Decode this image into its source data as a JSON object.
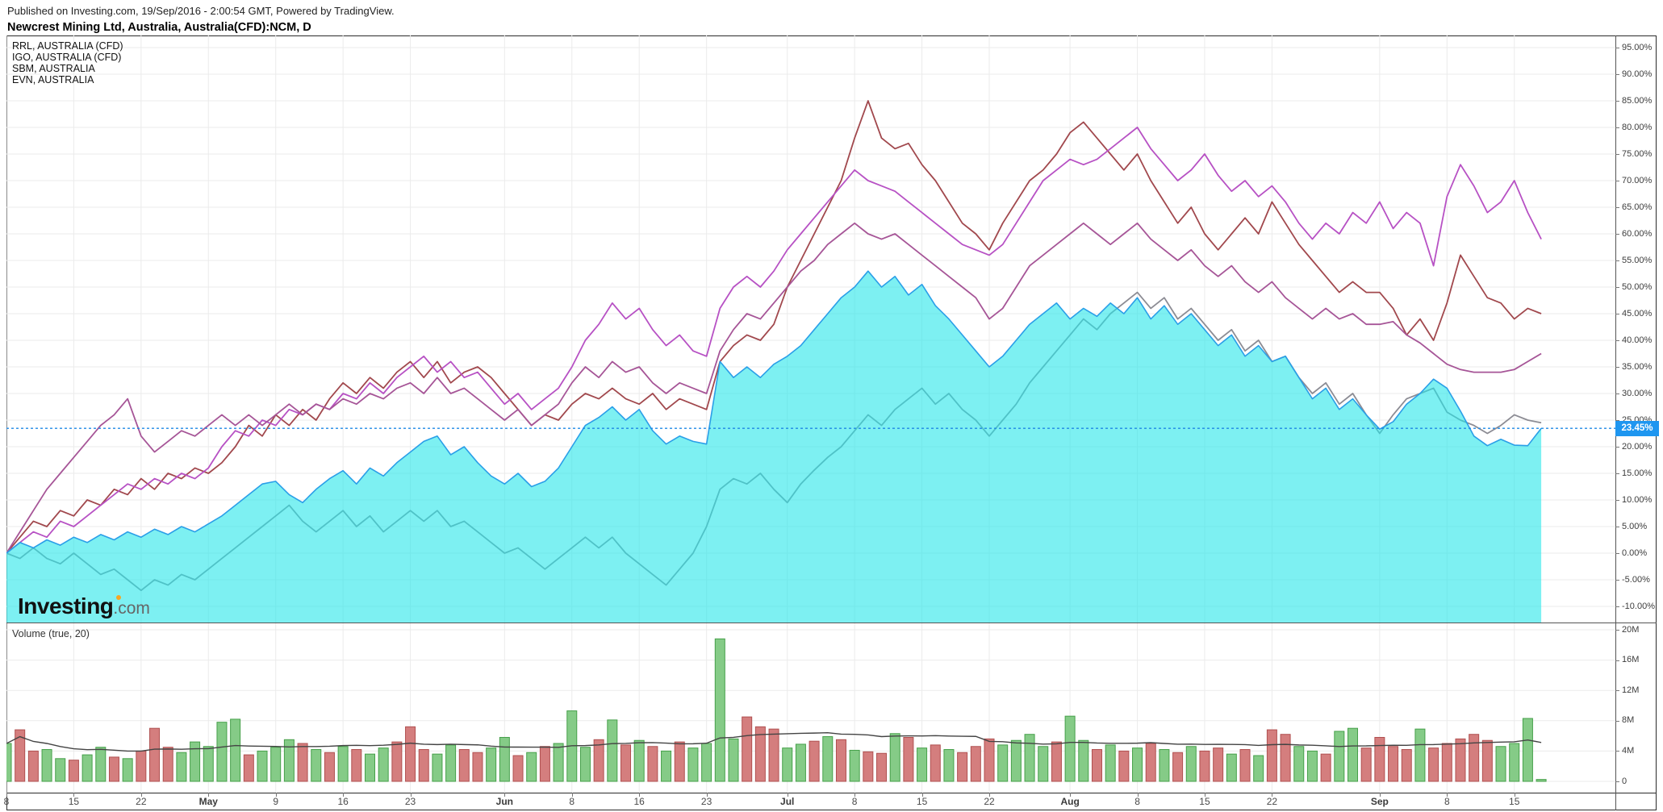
{
  "header": {
    "published": "Published on Investing.com, 19/Sep/2016 - 2:00:54 GMT, Powered by TradingView.",
    "title": "Newcrest Mining Ltd, Australia, Australia(CFD):NCM, D"
  },
  "legend": {
    "items": [
      "RRL, AUSTRALIA (CFD)",
      "IGO, AUSTRALIA (CFD)",
      "SBM, AUSTRALIA",
      "EVN, AUSTRALIA"
    ]
  },
  "watermark": {
    "brand": "Investing",
    "suffix": ".com"
  },
  "volume_pane": {
    "label": "Volume (true, 20)"
  },
  "current_value_badge": "23.45%",
  "colors": {
    "area_fill": "rgba(38,230,233,0.6)",
    "area_line": "#2a9fe8",
    "dotted_line": "#1e88e5",
    "badge_bg": "#1e96f0",
    "rrl": "#a1484d",
    "igo": "#b751c4",
    "sbm": "#a65597",
    "evn": "#8c8c94",
    "vol_green_fill": "#85cb87",
    "vol_green_border": "#46a04a",
    "vol_red_fill": "#d47e7e",
    "vol_red_border": "#b05050",
    "vol_ma_line": "#444444",
    "grid": "#ebebeb"
  },
  "price_axis": {
    "ticks": [
      {
        "v": 95,
        "label": "95.00%"
      },
      {
        "v": 90,
        "label": "90.00%"
      },
      {
        "v": 85,
        "label": "85.00%"
      },
      {
        "v": 80,
        "label": "80.00%"
      },
      {
        "v": 75,
        "label": "75.00%"
      },
      {
        "v": 70,
        "label": "70.00%"
      },
      {
        "v": 65,
        "label": "65.00%"
      },
      {
        "v": 60,
        "label": "60.00%"
      },
      {
        "v": 55,
        "label": "55.00%"
      },
      {
        "v": 50,
        "label": "50.00%"
      },
      {
        "v": 45,
        "label": "45.00%"
      },
      {
        "v": 40,
        "label": "40.00%"
      },
      {
        "v": 35,
        "label": "35.00%"
      },
      {
        "v": 30,
        "label": "30.00%"
      },
      {
        "v": 25,
        "label": "25.00%"
      },
      {
        "v": 20,
        "label": "20.00%"
      },
      {
        "v": 15,
        "label": "15.00%"
      },
      {
        "v": 10,
        "label": "10.00%"
      },
      {
        "v": 5,
        "label": "5.00%"
      },
      {
        "v": 0,
        "label": "0.00%"
      },
      {
        "v": -5,
        "label": "-5.00%"
      },
      {
        "v": -10,
        "label": "-10.00%"
      }
    ]
  },
  "volume_axis": {
    "ticks": [
      {
        "v": 20,
        "label": "20M"
      },
      {
        "v": 16,
        "label": "16M"
      },
      {
        "v": 12,
        "label": "12M"
      },
      {
        "v": 8,
        "label": "8M"
      },
      {
        "v": 4,
        "label": "4M"
      },
      {
        "v": 0,
        "label": "0"
      }
    ]
  },
  "x_axis": {
    "ticks": [
      {
        "td": 0,
        "label": "8",
        "month": false
      },
      {
        "td": 5,
        "label": "15",
        "month": false
      },
      {
        "td": 10,
        "label": "22",
        "month": false
      },
      {
        "td": 15,
        "label": "May",
        "month": true
      },
      {
        "td": 20,
        "label": "9",
        "month": false
      },
      {
        "td": 25,
        "label": "16",
        "month": false
      },
      {
        "td": 30,
        "label": "23",
        "month": false
      },
      {
        "td": 37,
        "label": "Jun",
        "month": true
      },
      {
        "td": 42,
        "label": "8",
        "month": false
      },
      {
        "td": 47,
        "label": "16",
        "month": false
      },
      {
        "td": 52,
        "label": "23",
        "month": false
      },
      {
        "td": 58,
        "label": "Jul",
        "month": true
      },
      {
        "td": 63,
        "label": "8",
        "month": false
      },
      {
        "td": 68,
        "label": "15",
        "month": false
      },
      {
        "td": 73,
        "label": "22",
        "month": false
      },
      {
        "td": 79,
        "label": "Aug",
        "month": true
      },
      {
        "td": 84,
        "label": "8",
        "month": false
      },
      {
        "td": 89,
        "label": "15",
        "month": false
      },
      {
        "td": 94,
        "label": "22",
        "month": false
      },
      {
        "td": 102,
        "label": "Sep",
        "month": true
      },
      {
        "td": 107,
        "label": "8",
        "month": false
      },
      {
        "td": 112,
        "label": "15",
        "month": false
      }
    ]
  },
  "chart_data": [
    {
      "type": "area",
      "name": "NCM, Australia(CFD) percent change",
      "x_unit": "trading-day index from 8/Apr/2016",
      "y_unit": "percent",
      "ylim": [
        -10,
        95
      ],
      "final_value": 23.45,
      "values": [
        0,
        2,
        1,
        2.5,
        1.5,
        3,
        2,
        3.5,
        2.5,
        4,
        3,
        4.5,
        3.5,
        5,
        4,
        5.5,
        7,
        9,
        11,
        13,
        13.5,
        11,
        9.5,
        12,
        14,
        15.5,
        13,
        16,
        14.5,
        17,
        19,
        21,
        22,
        18.5,
        20,
        17,
        14.5,
        13,
        15,
        12.5,
        13.5,
        16,
        20,
        24,
        25.5,
        27.5,
        25,
        27,
        23,
        20.5,
        22,
        21,
        20.5,
        36,
        33,
        35,
        33,
        35.5,
        37,
        39,
        42,
        45,
        48,
        50,
        53,
        50,
        52,
        48.5,
        50.5,
        46.5,
        44,
        41,
        38,
        35,
        37,
        40,
        43,
        45,
        47,
        44,
        46,
        44.5,
        47,
        45,
        48,
        44,
        46.5,
        43,
        45,
        42,
        39,
        41,
        37,
        39,
        36,
        37,
        33,
        29,
        31,
        27,
        29,
        26,
        23.3,
        24.7,
        28,
        30,
        32.7,
        31,
        26.7,
        22,
        20.2,
        21.4,
        20.3,
        20.2,
        23.45
      ]
    },
    {
      "type": "line",
      "y_unit": "percent",
      "series": [
        {
          "name": "RRL, AUSTRALIA (CFD)",
          "color_key": "rrl",
          "values": [
            0,
            3,
            6,
            5,
            8,
            7,
            10,
            9,
            12,
            11,
            14,
            12,
            15,
            14,
            16,
            15,
            17,
            20,
            24,
            22,
            26,
            24,
            27,
            25,
            29,
            32,
            30,
            33,
            31,
            34,
            36,
            33,
            36,
            32,
            34,
            35,
            33,
            30,
            27,
            24,
            26,
            25,
            28,
            30,
            29,
            31,
            29,
            28,
            30,
            27,
            29,
            28,
            27,
            36,
            39,
            41,
            40,
            43,
            50,
            55,
            60,
            65,
            70,
            78,
            85,
            78,
            76,
            77,
            73,
            70,
            66,
            62,
            60,
            57,
            62,
            66,
            70,
            72,
            75,
            79,
            81,
            78,
            75,
            72,
            75,
            70,
            66,
            62,
            65,
            60,
            57,
            60,
            63,
            60,
            66,
            62,
            58,
            55,
            52,
            49,
            51,
            49,
            49,
            46,
            41,
            44,
            40,
            47,
            56,
            52,
            48,
            47,
            44,
            46,
            45
          ]
        },
        {
          "name": "IGO, AUSTRALIA (CFD)",
          "color_key": "igo",
          "values": [
            0,
            2,
            4,
            3,
            6,
            5,
            7,
            9,
            11,
            13,
            12,
            14,
            13,
            15,
            14,
            16,
            20,
            23,
            22,
            25,
            24,
            27,
            26,
            28,
            27,
            30,
            29,
            32,
            30,
            33,
            35,
            37,
            34,
            36,
            33,
            34,
            31,
            28,
            30,
            27,
            29,
            31,
            35,
            40,
            43,
            47,
            44,
            46,
            42,
            39,
            41,
            38,
            37,
            46,
            50,
            52,
            50,
            53,
            57,
            60,
            63,
            66,
            69,
            72,
            70,
            69,
            68,
            66,
            64,
            62,
            60,
            58,
            57,
            56,
            58,
            62,
            66,
            70,
            72,
            74,
            73,
            74,
            76,
            78,
            80,
            76,
            73,
            70,
            72,
            75,
            71,
            68,
            70,
            67,
            69,
            66,
            62,
            59,
            62,
            60,
            64,
            62,
            66,
            61,
            64,
            62,
            54,
            67,
            73,
            69,
            64,
            66,
            70,
            64,
            59
          ]
        },
        {
          "name": "SBM, AUSTRALIA",
          "color_key": "sbm",
          "values": [
            0,
            4,
            8,
            12,
            15,
            18,
            21,
            24,
            26,
            29,
            22,
            19,
            21,
            23,
            22,
            24,
            26,
            24,
            26,
            24,
            26,
            28,
            26,
            28,
            27,
            29,
            28,
            30,
            29,
            31,
            32,
            30,
            33,
            30,
            31,
            29,
            27,
            25,
            27,
            24,
            26,
            28,
            32,
            35,
            33,
            36,
            34,
            35,
            32,
            30,
            32,
            31,
            30,
            38,
            42,
            45,
            44,
            47,
            50,
            53,
            55,
            58,
            60,
            62,
            60,
            59,
            60,
            58,
            56,
            54,
            52,
            50,
            48,
            44,
            46,
            50,
            54,
            56,
            58,
            60,
            62,
            60,
            58,
            60,
            62,
            59,
            57,
            55,
            57,
            54,
            52,
            54,
            51,
            49,
            51,
            48,
            46,
            44,
            46,
            44,
            45,
            43,
            43,
            43.5,
            41,
            39.5,
            37.5,
            35.5,
            34.5,
            34,
            34,
            34,
            34.5,
            36,
            37.5
          ]
        },
        {
          "name": "EVN, AUSTRALIA",
          "color_key": "evn",
          "values": [
            0,
            -1,
            1,
            -1,
            -2,
            0,
            -2,
            -4,
            -3,
            -5,
            -7,
            -5,
            -6,
            -4,
            -5,
            -3,
            -1,
            1,
            3,
            5,
            7,
            9,
            6,
            4,
            6,
            8,
            5,
            7,
            4,
            6,
            8,
            6,
            8,
            5,
            6,
            4,
            2,
            0,
            1,
            -1,
            -3,
            -1,
            1,
            3,
            1,
            3,
            0,
            -2,
            -4,
            -6,
            -3,
            0,
            5,
            12,
            14,
            13,
            15,
            12,
            9.5,
            13,
            15.6,
            18,
            20,
            23,
            26,
            24,
            27,
            29,
            31,
            28,
            30,
            27,
            25,
            22,
            25,
            28,
            32,
            35,
            38,
            41,
            44,
            42,
            45,
            47,
            49,
            46,
            48,
            44,
            46,
            43,
            40,
            42,
            38,
            40,
            36,
            37,
            33,
            30,
            32,
            28,
            30,
            26,
            22.5,
            26,
            29,
            30,
            31,
            26.5,
            25,
            24,
            22.5,
            24,
            26,
            25,
            24.5
          ]
        }
      ]
    },
    {
      "type": "bar",
      "name": "Volume",
      "y_unit": "millions of shares",
      "ylim": [
        0,
        20
      ],
      "ma_window": 20,
      "values": [
        5,
        6.8,
        4,
        4.2,
        3,
        2.8,
        3.5,
        4.5,
        3.2,
        3,
        4,
        7,
        4.5,
        3.8,
        5.2,
        4.6,
        7.8,
        8.2,
        3.5,
        4,
        4.5,
        5.5,
        5,
        4.2,
        3.8,
        4.6,
        4.2,
        3.6,
        4.4,
        5.2,
        7.2,
        4.2,
        3.6,
        4.8,
        4.2,
        3.8,
        4.4,
        5.8,
        3.4,
        3.8,
        4.6,
        5,
        9.3,
        4.5,
        5.5,
        8.1,
        4.8,
        5.4,
        4.6,
        4,
        5.2,
        4.4,
        5,
        18.8,
        5.6,
        8.5,
        7.2,
        6.9,
        4.4,
        4.9,
        5.3,
        5.9,
        5.5,
        4.1,
        3.9,
        3.7,
        6.3,
        5.8,
        4.4,
        4.8,
        4.2,
        3.8,
        4.6,
        5.6,
        4.8,
        5.4,
        6.2,
        4.6,
        5.2,
        8.6,
        5.4,
        4.2,
        4.8,
        4,
        4.4,
        5,
        4.2,
        3.8,
        4.6,
        4,
        4.4,
        3.6,
        4.2,
        3.4,
        6.8,
        6.2,
        4.6,
        4,
        3.6,
        6.6,
        7,
        4.4,
        5.8,
        4.6,
        4.2,
        6.9,
        4.4,
        5,
        5.6,
        6.2,
        5.4,
        4.6,
        5,
        8.3,
        0.25
      ],
      "bar_colors": [
        "g",
        "r",
        "r",
        "g",
        "g",
        "r",
        "g",
        "g",
        "r",
        "g",
        "r",
        "r",
        "r",
        "g",
        "g",
        "g",
        "g",
        "g",
        "r",
        "g",
        "g",
        "g",
        "r",
        "g",
        "r",
        "g",
        "r",
        "g",
        "g",
        "r",
        "r",
        "r",
        "g",
        "g",
        "r",
        "r",
        "g",
        "g",
        "r",
        "g",
        "r",
        "g",
        "g",
        "g",
        "r",
        "g",
        "r",
        "g",
        "r",
        "g",
        "r",
        "g",
        "g",
        "g",
        "g",
        "r",
        "r",
        "r",
        "g",
        "g",
        "r",
        "g",
        "r",
        "g",
        "r",
        "r",
        "g",
        "r",
        "g",
        "r",
        "g",
        "r",
        "r",
        "r",
        "g",
        "g",
        "g",
        "g",
        "r",
        "g",
        "g",
        "r",
        "g",
        "r",
        "g",
        "r",
        "g",
        "r",
        "g",
        "r",
        "r",
        "g",
        "r",
        "g",
        "r",
        "r",
        "g",
        "g",
        "r",
        "g",
        "g",
        "r",
        "r",
        "r",
        "r",
        "g",
        "r",
        "r",
        "r",
        "r",
        "r",
        "g",
        "g",
        "g",
        "g"
      ]
    }
  ]
}
